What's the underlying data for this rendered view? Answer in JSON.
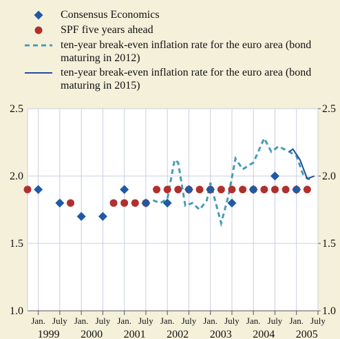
{
  "chart_data": {
    "type": "line",
    "series": [
      {
        "name": "Consensus Economics",
        "color": "#1f5aa6",
        "marker": "diamond",
        "x": [
          "1999-01",
          "1999-07",
          "2000-01",
          "2000-07",
          "2001-01",
          "2001-07",
          "2002-01",
          "2002-07",
          "2003-01",
          "2003-07",
          "2004-01",
          "2004-07",
          "2005-01"
        ],
        "values": [
          1.9,
          1.8,
          1.7,
          1.7,
          1.9,
          1.8,
          1.8,
          1.9,
          1.9,
          1.8,
          1.9,
          2.0,
          1.9
        ]
      },
      {
        "name": "SPF five years ahead",
        "color": "#b0302e",
        "marker": "circle",
        "x": [
          "1998-10",
          "1999-10",
          "2000-10",
          "2001-01",
          "2001-04",
          "2001-07",
          "2001-10",
          "2002-01",
          "2002-04",
          "2002-07",
          "2002-10",
          "2003-01",
          "2003-04",
          "2003-07",
          "2003-10",
          "2004-01",
          "2004-04",
          "2004-07",
          "2004-10",
          "2005-01",
          "2005-04"
        ],
        "values": [
          1.9,
          1.8,
          1.8,
          1.8,
          1.8,
          1.8,
          1.9,
          1.9,
          1.9,
          1.9,
          1.9,
          1.9,
          1.9,
          1.9,
          1.9,
          1.9,
          1.9,
          1.9,
          1.9,
          1.9,
          1.9
        ]
      },
      {
        "name": "ten-year break-even inflation rate for the euro area (bond maturing in 2012)",
        "color": "#4a9bb5",
        "marker": "dashed",
        "x": [
          "2001-09",
          "2001-11",
          "2002-01",
          "2002-03",
          "2002-04",
          "2002-06",
          "2002-08",
          "2002-10",
          "2002-12",
          "2003-01",
          "2003-04",
          "2003-06",
          "2003-08",
          "2003-10",
          "2004-01",
          "2004-04",
          "2004-06",
          "2004-08",
          "2004-11",
          "2005-01",
          "2005-03",
          "2005-05"
        ],
        "values": [
          1.82,
          1.8,
          1.83,
          2.12,
          2.1,
          1.78,
          1.8,
          1.75,
          1.82,
          1.95,
          1.65,
          1.85,
          2.13,
          2.05,
          2.1,
          2.28,
          2.18,
          2.22,
          2.18,
          2.15,
          2.0,
          1.97
        ]
      },
      {
        "name": "ten-year break-even inflation rate for the euro area (bond maturing in 2015)",
        "color": "#1f4e9c",
        "marker": "solid",
        "x": [
          "2004-11",
          "2004-12",
          "2005-02",
          "2005-04",
          "2005-06"
        ],
        "values": [
          2.18,
          2.2,
          2.12,
          1.98,
          2.0
        ]
      }
    ],
    "xlim": [
      "1998-10",
      "2005-07"
    ],
    "xticks": [
      {
        "value": "1999-01",
        "label": "Jan."
      },
      {
        "value": "1999-07",
        "label": "July"
      },
      {
        "value": "2000-01",
        "label": "Jan."
      },
      {
        "value": "2000-07",
        "label": "July"
      },
      {
        "value": "2001-01",
        "label": "Jan."
      },
      {
        "value": "2001-07",
        "label": "July"
      },
      {
        "value": "2002-01",
        "label": "Jan."
      },
      {
        "value": "2002-07",
        "label": "July"
      },
      {
        "value": "2003-01",
        "label": "Jan."
      },
      {
        "value": "2003-07",
        "label": "July"
      },
      {
        "value": "2004-01",
        "label": "Jan."
      },
      {
        "value": "2004-07",
        "label": "July"
      },
      {
        "value": "2005-01",
        "label": "Jan."
      },
      {
        "value": "2005-07",
        "label": "July"
      }
    ],
    "years": [
      "1999",
      "2000",
      "2001",
      "2002",
      "2003",
      "2004",
      "2005"
    ],
    "ylim": [
      1.0,
      2.5
    ],
    "yticks": [
      {
        "value": 1.0,
        "label": "1.0"
      },
      1.5,
      {
        "value": 2.0,
        "label": "2.0"
      },
      2.5
    ],
    "y2lim": [
      1.0,
      2.5
    ],
    "y2ticks": [
      {
        "value": 1.0,
        "label": "1.0"
      },
      1.5,
      {
        "value": 2.0,
        "label": "2.0"
      },
      2.5
    ],
    "grid": true,
    "legend": "top-left"
  }
}
